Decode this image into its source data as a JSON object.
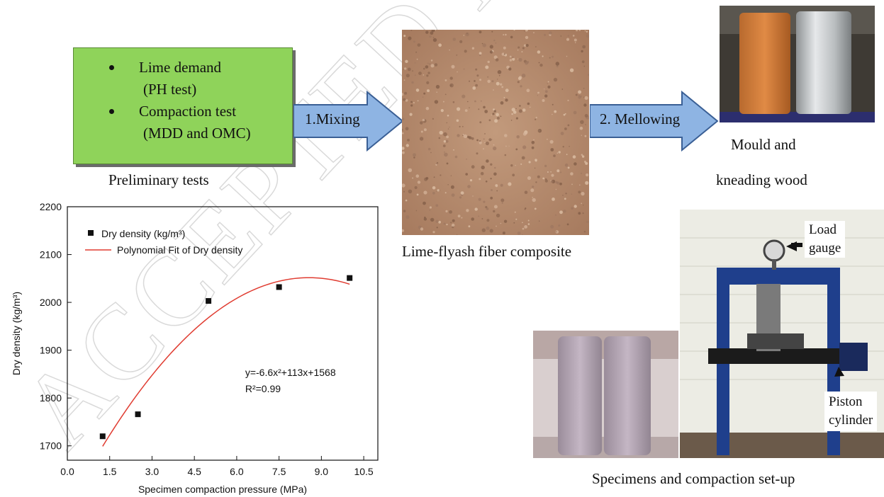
{
  "preliminary": {
    "items": [
      {
        "main": "Lime demand",
        "sub": "(PH test)"
      },
      {
        "main": "Compaction test",
        "sub": "(MDD and OMC)"
      }
    ],
    "caption": "Preliminary tests"
  },
  "steps": {
    "mixing": "1.Mixing",
    "mellowing": "2. Mellowing"
  },
  "composite_caption": "Lime-flyash fiber composite",
  "mould_caption_line1": "Mould and",
  "mould_caption_line2": "kneading wood",
  "setup_caption": "Specimens and compaction set-up",
  "press_labels": {
    "load_line1": "Load",
    "load_line2": "gauge",
    "piston_line1": "Piston",
    "piston_line2": "cylinder"
  },
  "watermark_text": "ACCEPTED MANUSCRIPT",
  "colors": {
    "prelim_box": "#8fd35a",
    "arrow_fill": "#8eb4e3",
    "fit_line": "#e03c31",
    "soil": "#b98c6e"
  },
  "chart_data": {
    "type": "scatter",
    "xlabel": "Specimen compaction pressure (MPa)",
    "ylabel": "Dry density (kg/m³)",
    "xlim": [
      0.0,
      11.0
    ],
    "ylim": [
      1670,
      2200
    ],
    "x_ticks": [
      "0.0",
      "1.5",
      "3.0",
      "4.5",
      "6.0",
      "7.5",
      "9.0",
      "10.5"
    ],
    "y_ticks": [
      "1700",
      "1800",
      "1900",
      "2000",
      "2100",
      "2200"
    ],
    "series": [
      {
        "name": "Dry density (kg/m³)",
        "kind": "points",
        "x": [
          1.25,
          2.5,
          5.0,
          7.5,
          10.0
        ],
        "y": [
          1720,
          1766,
          2003,
          2032,
          2051
        ]
      },
      {
        "name": "Polynomial Fit of Dry density",
        "kind": "line",
        "coefficients": {
          "a": -6.6,
          "b": 113,
          "c": 1568
        },
        "x_range": [
          1.25,
          10.0
        ]
      }
    ],
    "annotation_eq": "y=-6.6x²+113x+1568",
    "annotation_r2": "R²=0.99",
    "legend_position": "top-left",
    "grid": false
  }
}
